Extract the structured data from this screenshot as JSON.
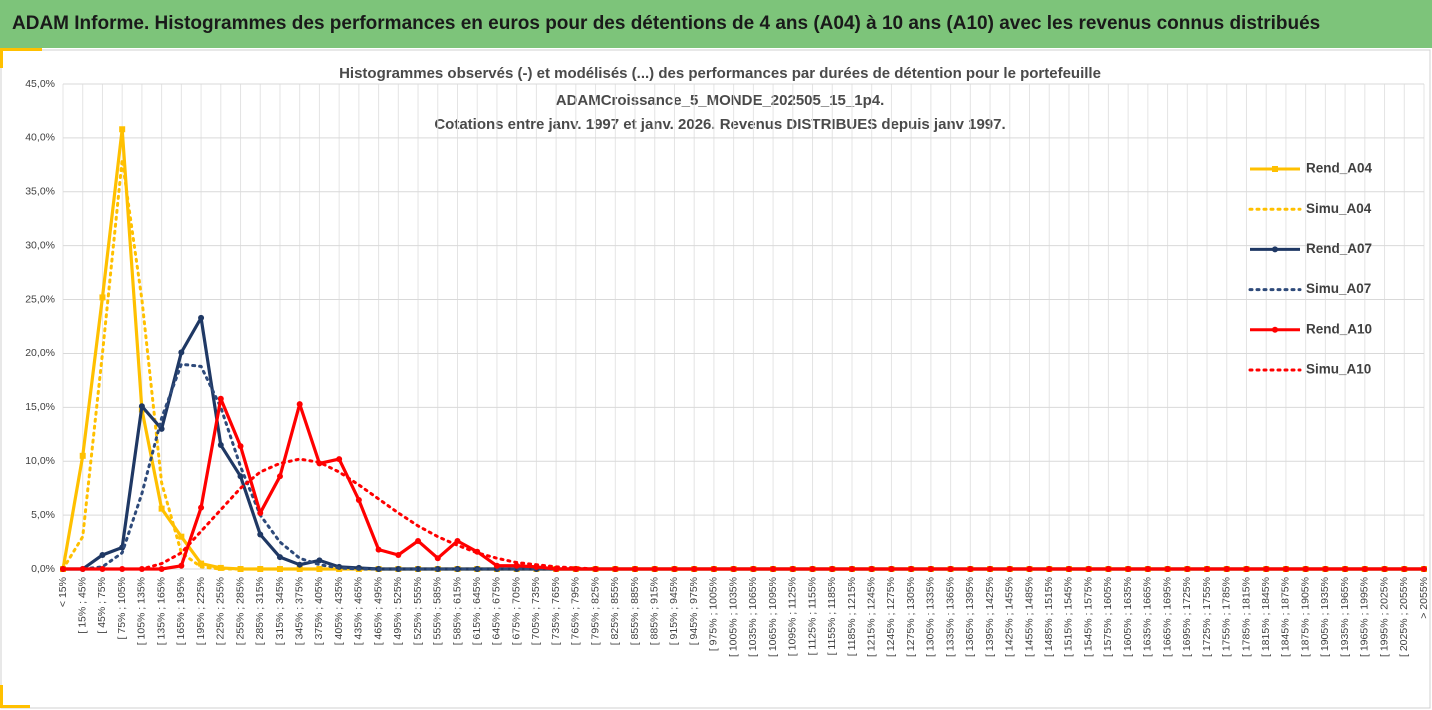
{
  "header": {
    "title": "ADAM Informe. Histogrammes des performances en euros pour des détentions de 4 ans (A04) à 10 ans (A10) avec les revenus connus distribués"
  },
  "chart_data": {
    "type": "line",
    "title": [
      "Histogrammes observés (-) et modélisés (...) des performances par durées de détention pour le portefeuille",
      "ADAMCroissance_5_MONDE_202505_15_1p4.",
      "Cotations entre janv. 1997 et janv. 2026. Revenus DISTRIBUES depuis janv 1997."
    ],
    "categories": [
      "< 15%",
      "[ 15% ; 45%",
      "[ 45% ; 75%",
      "[ 75% ; 105%",
      "[ 105% ; 135%",
      "[ 135% ; 165%",
      "[ 165% ; 195%",
      "[ 195% ; 225%",
      "[ 225% ; 255%",
      "[ 255% ; 285%",
      "[ 285% ; 315%",
      "[ 315% ; 345%",
      "[ 345% ; 375%",
      "[ 375% ; 405%",
      "[ 405% ; 435%",
      "[ 435% ; 465%",
      "[ 465% ; 495%",
      "[ 495% ; 525%",
      "[ 525% ; 555%",
      "[ 555% ; 585%",
      "[ 585% ; 615%",
      "[ 615% ; 645%",
      "[ 645% ; 675%",
      "[ 675% ; 705%",
      "[ 705% ; 735%",
      "[ 735% ; 765%",
      "[ 765% ; 795%",
      "[ 795% ; 825%",
      "[ 825% ; 855%",
      "[ 855% ; 885%",
      "[ 885% ; 915%",
      "[ 915% ; 945%",
      "[ 945% ; 975%",
      "[ 975% ; 1005%",
      "[ 1005% ; 1035%",
      "[ 1035% ; 1065%",
      "[ 1065% ; 1095%",
      "[ 1095% ; 1125%",
      "[ 1125% ; 1155%",
      "[ 1155% ; 1185%",
      "[ 1185% ; 1215%",
      "[ 1215% ; 1245%",
      "[ 1245% ; 1275%",
      "[ 1275% ; 1305%",
      "[ 1305% ; 1335%",
      "[ 1335% ; 1365%",
      "[ 1365% ; 1395%",
      "[ 1395% ; 1425%",
      "[ 1425% ; 1455%",
      "[ 1455% ; 1485%",
      "[ 1485% ; 1515%",
      "[ 1515% ; 1545%",
      "[ 1545% ; 1575%",
      "[ 1575% ; 1605%",
      "[ 1605% ; 1635%",
      "[ 1635% ; 1665%",
      "[ 1665% ; 1695%",
      "[ 1695% ; 1725%",
      "[ 1725% ; 1755%",
      "[ 1755% ; 1785%",
      "[ 1785% ; 1815%",
      "[ 1815% ; 1845%",
      "[ 1845% ; 1875%",
      "[ 1875% ; 1905%",
      "[ 1905% ; 1935%",
      "[ 1935% ; 1965%",
      "[ 1965% ; 1995%",
      "[ 1995% ; 2025%",
      "[ 2025% ; 2055%",
      "> 2055%"
    ],
    "series": [
      {
        "name": "Rend_A04",
        "color": "#FFC000",
        "dashed": false,
        "marker": "square",
        "values": [
          0,
          10.5,
          25.2,
          40.8,
          14.8,
          5.6,
          3.0,
          0.5,
          0.1,
          0,
          0,
          0,
          0,
          0,
          0,
          0,
          0,
          0,
          0,
          0,
          0,
          0,
          0,
          0,
          0,
          0,
          0,
          0,
          0,
          0,
          0,
          0,
          0,
          0,
          0,
          0,
          0,
          0,
          0,
          0,
          0,
          0,
          0,
          0,
          0,
          0,
          0,
          0,
          0,
          0,
          0,
          0,
          0,
          0,
          0,
          0,
          0,
          0,
          0,
          0,
          0,
          0,
          0,
          0,
          0,
          0,
          0,
          0,
          0,
          0
        ]
      },
      {
        "name": "Simu_A04",
        "color": "#FFC000",
        "dashed": true,
        "marker": null,
        "values": [
          0,
          3,
          20,
          38,
          25,
          8,
          1.5,
          0.2,
          0,
          0,
          0,
          0,
          0,
          0,
          0,
          0,
          0,
          0,
          0,
          0,
          0,
          0,
          0,
          0,
          0,
          0,
          0,
          0,
          0,
          0,
          0,
          0,
          0,
          0,
          0,
          0,
          0,
          0,
          0,
          0,
          0,
          0,
          0,
          0,
          0,
          0,
          0,
          0,
          0,
          0,
          0,
          0,
          0,
          0,
          0,
          0,
          0,
          0,
          0,
          0,
          0,
          0,
          0,
          0,
          0,
          0,
          0,
          0,
          0,
          0
        ]
      },
      {
        "name": "Rend_A07",
        "color": "#1F3864",
        "dashed": false,
        "marker": "circle",
        "values": [
          0,
          0,
          1.3,
          2.0,
          15.1,
          13.0,
          20.1,
          23.3,
          11.5,
          8.6,
          3.2,
          1.1,
          0.4,
          0.8,
          0.2,
          0.1,
          0,
          0,
          0,
          0,
          0,
          0,
          0,
          0,
          0,
          0,
          0,
          0,
          0,
          0,
          0,
          0,
          0,
          0,
          0,
          0,
          0,
          0,
          0,
          0,
          0,
          0,
          0,
          0,
          0,
          0,
          0,
          0,
          0,
          0,
          0,
          0,
          0,
          0,
          0,
          0,
          0,
          0,
          0,
          0,
          0,
          0,
          0,
          0,
          0,
          0,
          0,
          0,
          0,
          0
        ]
      },
      {
        "name": "Simu_A07",
        "color": "#2E4A7A",
        "dashed": true,
        "marker": null,
        "values": [
          0,
          0,
          0.2,
          1.5,
          7,
          14,
          19,
          18.8,
          15,
          9.5,
          5,
          2.5,
          1.0,
          0.4,
          0.1,
          0,
          0,
          0,
          0,
          0,
          0,
          0,
          0,
          0,
          0,
          0,
          0,
          0,
          0,
          0,
          0,
          0,
          0,
          0,
          0,
          0,
          0,
          0,
          0,
          0,
          0,
          0,
          0,
          0,
          0,
          0,
          0,
          0,
          0,
          0,
          0,
          0,
          0,
          0,
          0,
          0,
          0,
          0,
          0,
          0,
          0,
          0,
          0,
          0,
          0,
          0,
          0,
          0,
          0,
          0
        ]
      },
      {
        "name": "Rend_A10",
        "color": "#FF0000",
        "dashed": false,
        "marker": "circle",
        "values": [
          0,
          0,
          0,
          0,
          0,
          0,
          0.3,
          5.7,
          15.8,
          11.4,
          5.2,
          8.6,
          15.3,
          9.8,
          10.2,
          6.4,
          1.8,
          1.3,
          2.6,
          1.0,
          2.6,
          1.6,
          0.3,
          0.3,
          0.2,
          0,
          0,
          0,
          0,
          0,
          0,
          0,
          0,
          0,
          0,
          0,
          0,
          0,
          0,
          0,
          0,
          0,
          0,
          0,
          0,
          0,
          0,
          0,
          0,
          0,
          0,
          0,
          0,
          0,
          0,
          0,
          0,
          0,
          0,
          0,
          0,
          0,
          0,
          0,
          0,
          0,
          0,
          0,
          0,
          0
        ]
      },
      {
        "name": "Simu_A10",
        "color": "#FF0000",
        "dashed": true,
        "marker": null,
        "values": [
          0,
          0,
          0,
          0,
          0,
          0.5,
          1.5,
          3.5,
          5.5,
          7.5,
          9,
          9.8,
          10.2,
          9.9,
          9,
          7.8,
          6.5,
          5.2,
          4,
          3,
          2.2,
          1.5,
          1,
          0.6,
          0.4,
          0.2,
          0.1,
          0,
          0,
          0,
          0,
          0,
          0,
          0,
          0,
          0,
          0,
          0,
          0,
          0,
          0,
          0,
          0,
          0,
          0,
          0,
          0,
          0,
          0,
          0,
          0,
          0,
          0,
          0,
          0,
          0,
          0,
          0,
          0,
          0,
          0,
          0,
          0,
          0,
          0,
          0,
          0,
          0,
          0,
          0
        ]
      }
    ],
    "ylim": [
      0,
      45
    ],
    "yticks": [
      {
        "value": 0,
        "label": "0,0%"
      },
      {
        "value": 5,
        "label": "5,0%"
      },
      {
        "value": 10,
        "label": "10,0%"
      },
      {
        "value": 15,
        "label": "15,0%"
      },
      {
        "value": 20,
        "label": "20,0%"
      },
      {
        "value": 25,
        "label": "25,0%"
      },
      {
        "value": 30,
        "label": "30,0%"
      },
      {
        "value": 35,
        "label": "35,0%"
      },
      {
        "value": 40,
        "label": "40,0%"
      },
      {
        "value": 45,
        "label": "45,0%"
      }
    ],
    "grid": true,
    "legend": "right"
  }
}
